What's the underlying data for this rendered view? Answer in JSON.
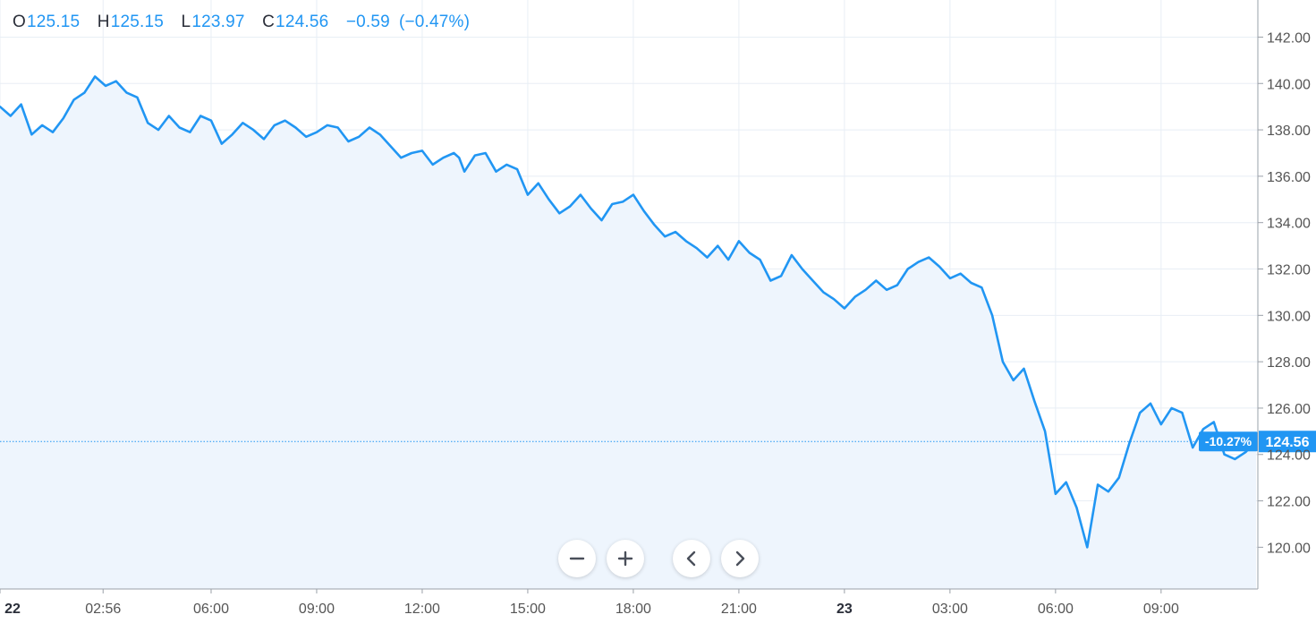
{
  "legend": {
    "open_label": "O",
    "open_value": "125.15",
    "high_label": "H",
    "high_value": "125.15",
    "low_label": "L",
    "low_value": "123.97",
    "close_label": "C",
    "close_value": "124.56",
    "change_abs": "−0.59",
    "change_pct": "(−0.47%)"
  },
  "price_marker": {
    "price": 124.56,
    "price_text": "124.56",
    "pct_text": "-10.27%"
  },
  "colors": {
    "line": "#2196f3",
    "area": "#eef5fd",
    "grid": "#e8eef5",
    "label_bg": "#2196f3",
    "axis_text": "#555555"
  },
  "controls": {
    "zoom_out": "minus-icon",
    "zoom_in": "plus-icon",
    "scroll_left": "chevron-left-icon",
    "scroll_right": "chevron-right-icon"
  },
  "chart_data": {
    "type": "area",
    "title": "",
    "xlabel": "",
    "ylabel": "",
    "ylim": [
      118.2,
      143.6
    ],
    "xlim": [
      0,
      35.75
    ],
    "y_ticks": [
      "120.00",
      "122.00",
      "124.00",
      "126.00",
      "128.00",
      "130.00",
      "132.00",
      "134.00",
      "136.00",
      "138.00",
      "140.00",
      "142.00"
    ],
    "x_ticks": [
      {
        "label": "22",
        "bold": true,
        "hour": 0
      },
      {
        "label": "02:56",
        "bold": false,
        "hour": 2.93
      },
      {
        "label": "06:00",
        "bold": false,
        "hour": 6
      },
      {
        "label": "09:00",
        "bold": false,
        "hour": 9
      },
      {
        "label": "12:00",
        "bold": false,
        "hour": 12
      },
      {
        "label": "15:00",
        "bold": false,
        "hour": 15
      },
      {
        "label": "18:00",
        "bold": false,
        "hour": 18
      },
      {
        "label": "21:00",
        "bold": false,
        "hour": 21
      },
      {
        "label": "23",
        "bold": true,
        "hour": 24
      },
      {
        "label": "03:00",
        "bold": false,
        "hour": 27
      },
      {
        "label": "06:00",
        "bold": false,
        "hour": 30
      },
      {
        "label": "09:00",
        "bold": false,
        "hour": 33
      }
    ],
    "x_hours": [
      0,
      0.3,
      0.6,
      0.9,
      1.2,
      1.5,
      1.8,
      2.1,
      2.4,
      2.7,
      3.0,
      3.3,
      3.6,
      3.9,
      4.2,
      4.5,
      4.8,
      5.1,
      5.4,
      5.7,
      6.0,
      6.3,
      6.6,
      6.9,
      7.2,
      7.5,
      7.8,
      8.1,
      8.4,
      8.7,
      9.0,
      9.3,
      9.6,
      9.9,
      10.2,
      10.5,
      10.8,
      11.1,
      11.4,
      11.7,
      12.0,
      12.3,
      12.6,
      12.9,
      13.05,
      13.2,
      13.5,
      13.8,
      14.1,
      14.4,
      14.7,
      15.0,
      15.3,
      15.6,
      15.9,
      16.2,
      16.5,
      16.8,
      17.1,
      17.4,
      17.7,
      18.0,
      18.3,
      18.6,
      18.9,
      19.2,
      19.5,
      19.8,
      20.1,
      20.4,
      20.7,
      21.0,
      21.3,
      21.6,
      21.9,
      22.2,
      22.5,
      22.8,
      23.1,
      23.4,
      23.7,
      24.0,
      24.3,
      24.6,
      24.9,
      25.2,
      25.5,
      25.8,
      26.1,
      26.4,
      26.7,
      27.0,
      27.3,
      27.6,
      27.9,
      28.2,
      28.5,
      28.8,
      29.1,
      29.4,
      29.7,
      30.0,
      30.3,
      30.6,
      30.9,
      31.2,
      31.5,
      31.8,
      32.1,
      32.4,
      32.7,
      33.0,
      33.3,
      33.6,
      33.9,
      34.2,
      34.5,
      34.8,
      35.1,
      35.4,
      35.7
    ],
    "series": [
      {
        "values": [
          139.0,
          138.6,
          139.1,
          137.8,
          138.2,
          137.9,
          138.5,
          139.3,
          139.6,
          140.3,
          139.9,
          140.1,
          139.6,
          139.4,
          138.3,
          138.0,
          138.6,
          138.1,
          137.9,
          138.6,
          138.4,
          137.4,
          137.8,
          138.3,
          138.0,
          137.6,
          138.2,
          138.4,
          138.1,
          137.7,
          137.9,
          138.2,
          138.1,
          137.5,
          137.7,
          138.1,
          137.8,
          137.3,
          136.8,
          137.0,
          137.1,
          136.5,
          136.8,
          137.0,
          136.8,
          136.2,
          136.9,
          137.0,
          136.2,
          136.5,
          136.3,
          135.2,
          135.7,
          135.0,
          134.4,
          134.7,
          135.2,
          134.6,
          134.1,
          134.8,
          134.9,
          135.2,
          134.5,
          133.9,
          133.4,
          133.6,
          133.2,
          132.9,
          132.5,
          133.0,
          132.4,
          133.2,
          132.7,
          132.4,
          131.5,
          131.7,
          132.6,
          132.0,
          131.5,
          131.0,
          130.7,
          130.3,
          130.8,
          131.1,
          131.5,
          131.1,
          131.3,
          132.0,
          132.3,
          132.5,
          132.1,
          131.6,
          131.8,
          131.4,
          131.2,
          130.0,
          128.0,
          127.2,
          127.7,
          126.3,
          125.0,
          122.3,
          122.8,
          121.7,
          120.0,
          122.7,
          122.4,
          123.0,
          124.5,
          125.8,
          126.2,
          125.3,
          126.0,
          125.8,
          124.3,
          125.1,
          125.4,
          124.0,
          123.8,
          124.1,
          124.56
        ]
      }
    ]
  }
}
